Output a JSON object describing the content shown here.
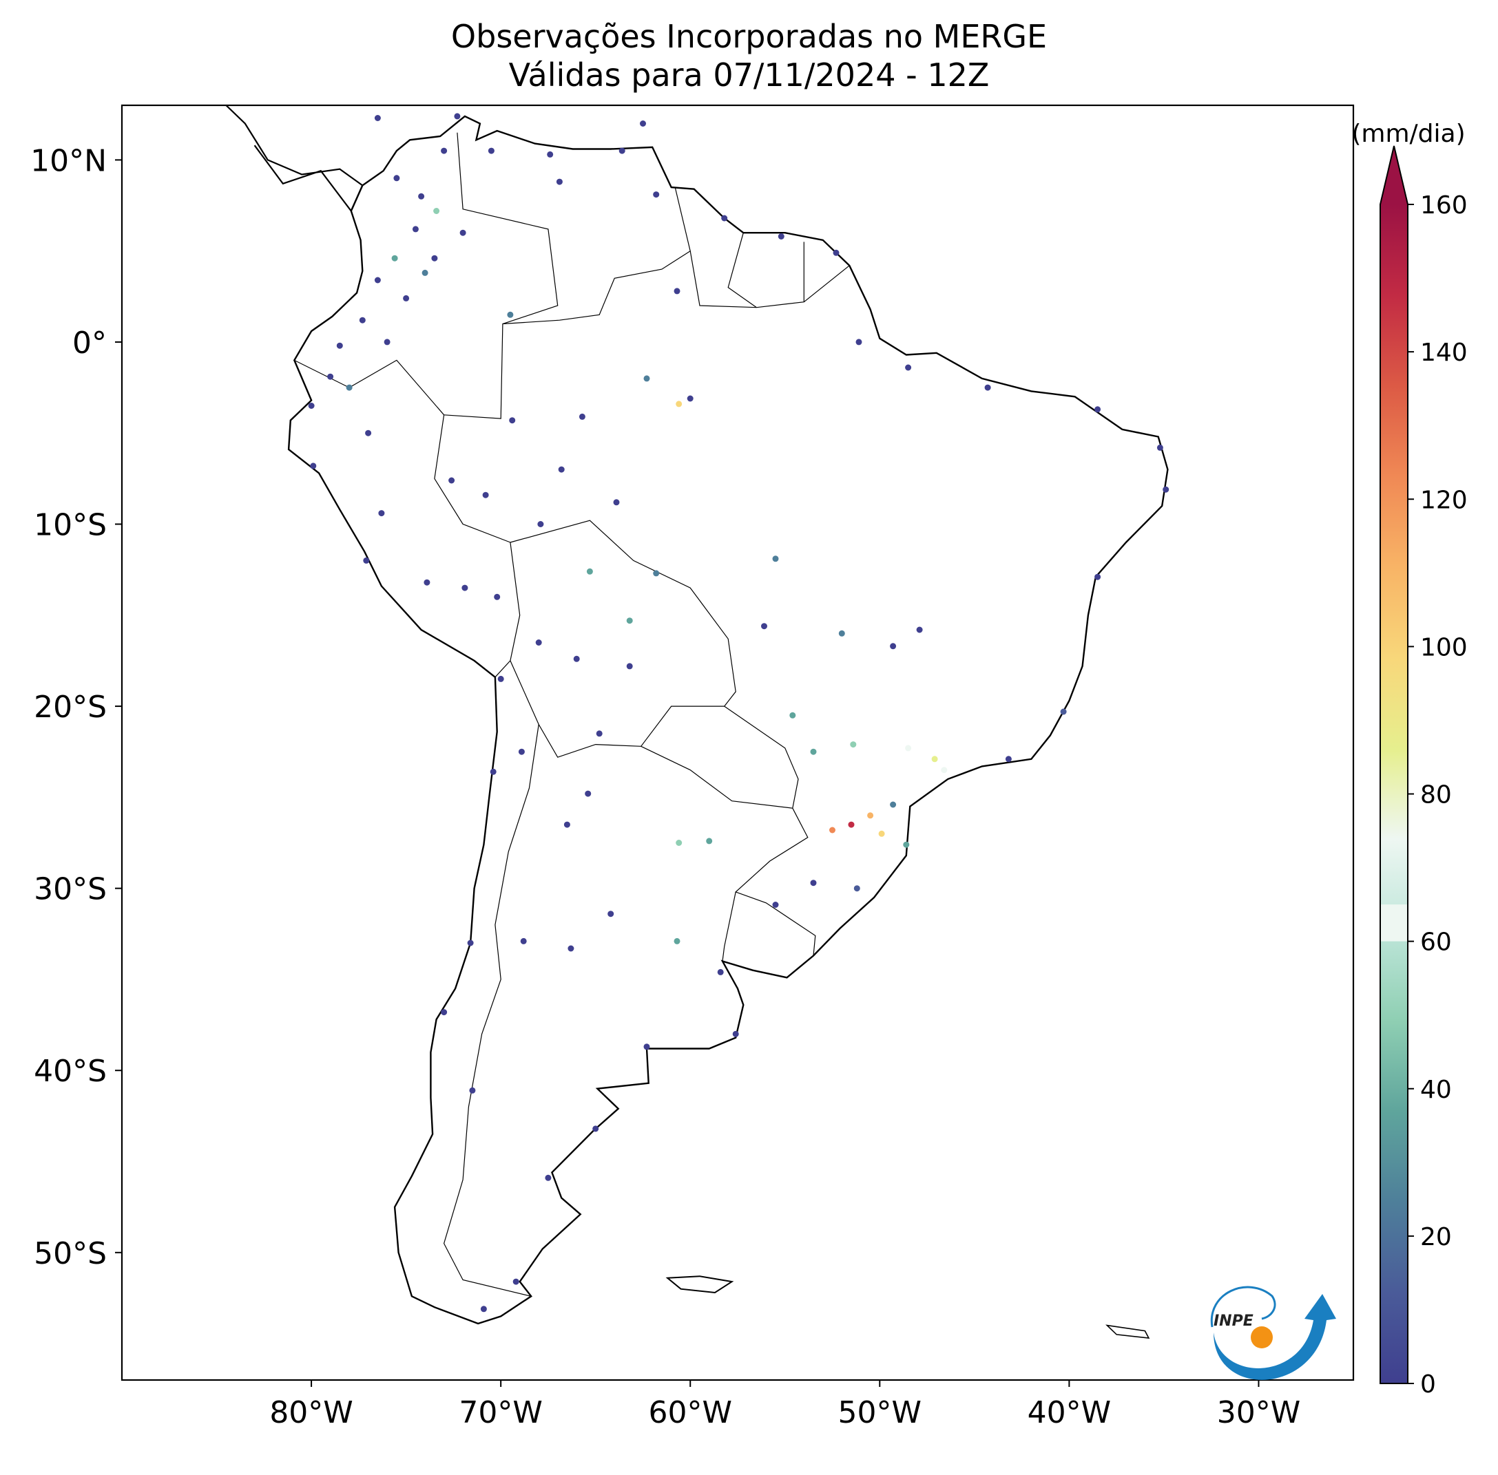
{
  "title": {
    "line1": "Observações Incorporadas no MERGE",
    "line2": "Válidas para 07/11/2024 - 12Z"
  },
  "map": {
    "projection": "PlateCarree",
    "lon_range": [
      -90,
      -25
    ],
    "lat_range": [
      -57,
      13
    ],
    "lon_ticks": [
      {
        "value": -80,
        "label": "80°W"
      },
      {
        "value": -70,
        "label": "70°W"
      },
      {
        "value": -60,
        "label": "60°W"
      },
      {
        "value": -50,
        "label": "50°W"
      },
      {
        "value": -40,
        "label": "40°W"
      },
      {
        "value": -30,
        "label": "30°W"
      }
    ],
    "lat_ticks": [
      {
        "value": 10,
        "label": "10°N"
      },
      {
        "value": 0,
        "label": "0°"
      },
      {
        "value": -10,
        "label": "10°S"
      },
      {
        "value": -20,
        "label": "20°S"
      },
      {
        "value": -30,
        "label": "30°S"
      },
      {
        "value": -40,
        "label": "40°S"
      },
      {
        "value": -50,
        "label": "50°S"
      }
    ],
    "land_fill": "#ffffff",
    "coast_color": "#000000",
    "border_color": "#000000"
  },
  "colorbar": {
    "unit_label": "(mm/dia)",
    "range": [
      0,
      160
    ],
    "extend": "max",
    "tick_values": [
      0,
      20,
      40,
      60,
      80,
      100,
      120,
      140,
      160
    ],
    "tick_labels": [
      "0",
      "20",
      "40",
      "60",
      "80",
      "100",
      "120",
      "140",
      "160"
    ],
    "white_band": [
      60,
      65
    ],
    "colors": [
      "#3f3f8f",
      "#4a5b99",
      "#4e7f9a",
      "#5fa59c",
      "#8fcfb3",
      "#bfe6da",
      "#eef7f2",
      "#e6ef8e",
      "#f8d77a",
      "#f8b466",
      "#f08955",
      "#dc5a45",
      "#c22b44",
      "#9b1244"
    ],
    "extend_color": "#9b1244"
  },
  "chart_data": {
    "type": "scatter",
    "title": "Observações Incorporadas no MERGE\nVálidas para 07/11/2024 - 12Z",
    "xlabel": "",
    "ylabel": "",
    "x_unit": "longitude (deg)",
    "y_unit": "latitude (deg)",
    "color_unit": "(mm/dia)",
    "xlim": [
      -90,
      -25
    ],
    "ylim": [
      -57,
      13
    ],
    "grid": false,
    "points": [
      [
        -76.5,
        12.3,
        2
      ],
      [
        -72.3,
        12.4,
        3
      ],
      [
        -62.5,
        12.0,
        2
      ],
      [
        -70.5,
        10.5,
        3
      ],
      [
        -67.4,
        10.3,
        4
      ],
      [
        -73.0,
        10.5,
        5
      ],
      [
        -75.5,
        9.0,
        2
      ],
      [
        -74.2,
        8.0,
        3
      ],
      [
        -73.4,
        7.2,
        48
      ],
      [
        -74.5,
        6.2,
        2
      ],
      [
        -72.0,
        6.0,
        3
      ],
      [
        -75.6,
        4.6,
        32
      ],
      [
        -73.5,
        4.6,
        5
      ],
      [
        -74.0,
        3.8,
        21
      ],
      [
        -76.5,
        3.4,
        3
      ],
      [
        -75.0,
        2.4,
        2
      ],
      [
        -77.3,
        1.2,
        5
      ],
      [
        -76.0,
        0.0,
        3
      ],
      [
        -78.5,
        -0.2,
        3
      ],
      [
        -79.0,
        -1.9,
        2
      ],
      [
        -78.0,
        -2.5,
        25
      ],
      [
        -80.0,
        -3.5,
        3
      ],
      [
        -77.0,
        -5.0,
        3
      ],
      [
        -79.9,
        -6.8,
        2
      ],
      [
        -76.3,
        -9.4,
        3
      ],
      [
        -77.1,
        -12.0,
        2
      ],
      [
        -73.9,
        -13.2,
        4
      ],
      [
        -71.9,
        -13.5,
        3
      ],
      [
        -70.2,
        -14.0,
        3
      ],
      [
        -70.0,
        -18.5,
        3
      ],
      [
        -68.0,
        -16.5,
        3
      ],
      [
        -66.0,
        -17.4,
        3
      ],
      [
        -63.2,
        -17.8,
        3
      ],
      [
        -64.8,
        -21.5,
        2
      ],
      [
        -65.4,
        -24.8,
        3
      ],
      [
        -68.9,
        -22.5,
        3
      ],
      [
        -70.4,
        -23.6,
        2
      ],
      [
        -66.5,
        -26.5,
        3
      ],
      [
        -68.8,
        -32.9,
        3
      ],
      [
        -64.2,
        -31.4,
        3
      ],
      [
        -60.7,
        -32.9,
        40
      ],
      [
        -58.4,
        -34.6,
        3
      ],
      [
        -57.6,
        -38.0,
        3
      ],
      [
        -62.3,
        -38.7,
        4
      ],
      [
        -65.0,
        -43.2,
        3
      ],
      [
        -67.5,
        -45.9,
        3
      ],
      [
        -69.2,
        -51.6,
        3
      ],
      [
        -70.9,
        -53.1,
        2
      ],
      [
        -71.5,
        -41.1,
        3
      ],
      [
        -73.0,
        -36.8,
        3
      ],
      [
        -71.6,
        -33.0,
        2
      ],
      [
        -66.3,
        -33.3,
        3
      ],
      [
        -59.0,
        -27.4,
        35
      ],
      [
        -60.6,
        -27.5,
        55
      ],
      [
        -61.8,
        -12.7,
        30
      ],
      [
        -63.2,
        -15.3,
        38
      ],
      [
        -65.3,
        -12.6,
        40
      ],
      [
        -63.9,
        -8.8,
        3
      ],
      [
        -60.0,
        -3.1,
        2
      ],
      [
        -60.6,
        -3.4,
        98
      ],
      [
        -62.3,
        -2.0,
        20
      ],
      [
        -65.7,
        -4.1,
        3
      ],
      [
        -66.8,
        -7.0,
        4
      ],
      [
        -67.9,
        -10.0,
        3
      ],
      [
        -70.8,
        -8.4,
        3
      ],
      [
        -72.6,
        -7.6,
        2
      ],
      [
        -69.4,
        -4.3,
        3
      ],
      [
        -69.5,
        1.5,
        28
      ],
      [
        -60.7,
        2.8,
        3
      ],
      [
        -61.8,
        8.1,
        3
      ],
      [
        -63.6,
        10.5,
        2
      ],
      [
        -66.9,
        8.8,
        3
      ],
      [
        -58.2,
        6.8,
        2
      ],
      [
        -55.2,
        5.8,
        3
      ],
      [
        -52.3,
        4.9,
        3
      ],
      [
        -51.1,
        0.0,
        3
      ],
      [
        -48.5,
        -1.4,
        3
      ],
      [
        -44.3,
        -2.5,
        3
      ],
      [
        -38.5,
        -3.7,
        3
      ],
      [
        -35.2,
        -5.8,
        3
      ],
      [
        -34.9,
        -8.1,
        3
      ],
      [
        -38.5,
        -12.9,
        3
      ],
      [
        -40.3,
        -20.3,
        8
      ],
      [
        -43.2,
        -22.9,
        5
      ],
      [
        -46.6,
        -23.5,
        70
      ],
      [
        -47.1,
        -22.9,
        85
      ],
      [
        -48.5,
        -22.3,
        60
      ],
      [
        -49.3,
        -25.4,
        30
      ],
      [
        -50.5,
        -26.0,
        110
      ],
      [
        -51.5,
        -26.5,
        150
      ],
      [
        -52.5,
        -26.8,
        125
      ],
      [
        -49.9,
        -27.0,
        95
      ],
      [
        -48.6,
        -27.6,
        40
      ],
      [
        -51.2,
        -30.0,
        8
      ],
      [
        -53.5,
        -29.7,
        5
      ],
      [
        -55.5,
        -30.9,
        3
      ],
      [
        -47.9,
        -15.8,
        4
      ],
      [
        -49.3,
        -16.7,
        6
      ],
      [
        -52.0,
        -16.0,
        30
      ],
      [
        -54.6,
        -20.5,
        35
      ],
      [
        -56.1,
        -15.6,
        3
      ],
      [
        -55.5,
        -11.9,
        30
      ],
      [
        -51.4,
        -22.1,
        45
      ],
      [
        -53.5,
        -22.5,
        40
      ]
    ]
  },
  "logo": {
    "text": "INPE"
  }
}
